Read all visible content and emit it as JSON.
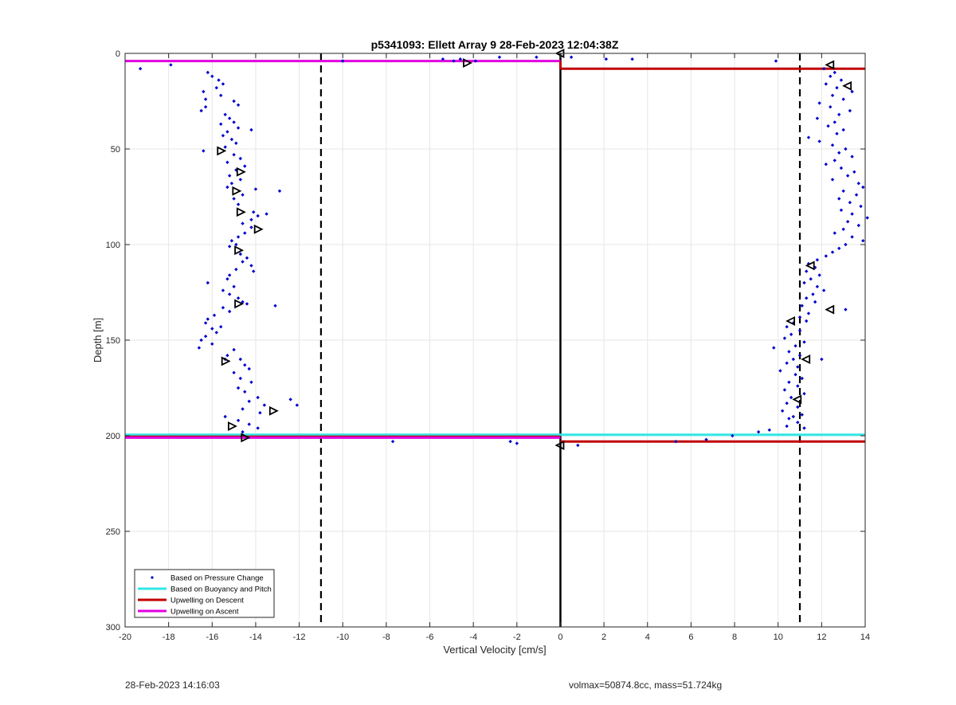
{
  "chart_data": {
    "type": "scatter",
    "title": "p5341093: Ellett Array 9 28-Feb-2023 12:04:38Z",
    "xlabel": "Vertical Velocity [cm/s]",
    "ylabel": "Depth [m]",
    "xlim": [
      -20,
      14
    ],
    "ylim": [
      0,
      300
    ],
    "y_reversed": true,
    "grid": true,
    "legend_position": "bottom-left",
    "x_ticks": [
      "-20",
      "-18",
      "-16",
      "-14",
      "-12",
      "-10",
      "-8",
      "-6",
      "-4",
      "-2",
      "0",
      "2",
      "4",
      "6",
      "8",
      "10",
      "12",
      "14"
    ],
    "y_ticks": [
      "0",
      "50",
      "100",
      "150",
      "200",
      "250",
      "300"
    ],
    "legend": [
      {
        "label": "Based on Pressure Change",
        "style": "dots",
        "color": "#0000cc"
      },
      {
        "label": "Based on Buoyancy and Pitch",
        "style": "line",
        "color": "#33e6e6"
      },
      {
        "label": "Upwelling on Descent",
        "style": "line",
        "color": "#c00000"
      },
      {
        "label": "Upwelling on Ascent",
        "style": "line",
        "color": "#e000e0"
      }
    ],
    "vertical_lines": [
      {
        "x": -11,
        "style": "dashed",
        "color": "#000000"
      },
      {
        "x": 11,
        "style": "dashed",
        "color": "#000000"
      }
    ],
    "series": [
      {
        "name": "Based on Pressure Change",
        "color": "#0000cc",
        "points": [
          [
            -19.3,
            8
          ],
          [
            -17.9,
            6
          ],
          [
            -16.2,
            10
          ],
          [
            -16.0,
            12
          ],
          [
            -15.7,
            14
          ],
          [
            -15.5,
            16
          ],
          [
            -15.8,
            18
          ],
          [
            -16.4,
            20
          ],
          [
            -15.6,
            22
          ],
          [
            -16.3,
            24
          ],
          [
            -15.0,
            25
          ],
          [
            -14.8,
            27
          ],
          [
            -16.3,
            28
          ],
          [
            -16.5,
            30
          ],
          [
            -15.4,
            32
          ],
          [
            -15.2,
            34
          ],
          [
            -15.0,
            36
          ],
          [
            -15.6,
            37
          ],
          [
            -14.8,
            39
          ],
          [
            -15.3,
            41
          ],
          [
            -14.2,
            40
          ],
          [
            -15.5,
            43
          ],
          [
            -15.1,
            45
          ],
          [
            -14.9,
            47
          ],
          [
            -15.4,
            49
          ],
          [
            -16.4,
            51
          ],
          [
            -15.0,
            53
          ],
          [
            -14.7,
            55
          ],
          [
            -15.3,
            57
          ],
          [
            -14.5,
            59
          ],
          [
            -14.9,
            61
          ],
          [
            -15.2,
            64
          ],
          [
            -14.7,
            66
          ],
          [
            -15.1,
            68
          ],
          [
            -15.3,
            70
          ],
          [
            -14.0,
            71
          ],
          [
            -12.9,
            72
          ],
          [
            -14.6,
            74
          ],
          [
            -15.0,
            76
          ],
          [
            -14.8,
            79
          ],
          [
            -14.1,
            83
          ],
          [
            -13.9,
            85
          ],
          [
            -13.5,
            84
          ],
          [
            -14.2,
            87
          ],
          [
            -14.6,
            89
          ],
          [
            -14.2,
            91
          ],
          [
            -14.5,
            94
          ],
          [
            -14.8,
            96
          ],
          [
            -15.1,
            98
          ],
          [
            -14.9,
            100
          ],
          [
            -15.2,
            101
          ],
          [
            -14.7,
            105
          ],
          [
            -14.4,
            107
          ],
          [
            -14.6,
            109
          ],
          [
            -14.2,
            111
          ],
          [
            -14.9,
            113
          ],
          [
            -14.1,
            114
          ],
          [
            -15.2,
            116
          ],
          [
            -15.3,
            118
          ],
          [
            -16.2,
            120
          ],
          [
            -15.0,
            122
          ],
          [
            -15.5,
            124
          ],
          [
            -15.2,
            126
          ],
          [
            -14.8,
            128
          ],
          [
            -14.6,
            130
          ],
          [
            -14.4,
            131
          ],
          [
            -13.1,
            132
          ],
          [
            -15.5,
            133
          ],
          [
            -15.2,
            135
          ],
          [
            -15.9,
            137
          ],
          [
            -16.2,
            139
          ],
          [
            -16.3,
            141
          ],
          [
            -15.6,
            143
          ],
          [
            -16.0,
            144
          ],
          [
            -15.8,
            146
          ],
          [
            -16.3,
            148
          ],
          [
            -16.5,
            150
          ],
          [
            -16.0,
            152
          ],
          [
            -16.6,
            154
          ],
          [
            -15.0,
            155
          ],
          [
            -15.3,
            158
          ],
          [
            -15.4,
            160
          ],
          [
            -14.7,
            160
          ],
          [
            -14.5,
            163
          ],
          [
            -14.3,
            165
          ],
          [
            -15.0,
            167
          ],
          [
            -14.7,
            170
          ],
          [
            -14.2,
            172
          ],
          [
            -14.8,
            175
          ],
          [
            -14.5,
            177
          ],
          [
            -13.9,
            180
          ],
          [
            -14.3,
            182
          ],
          [
            -12.4,
            181
          ],
          [
            -12.1,
            184
          ],
          [
            -13.6,
            184
          ],
          [
            -14.6,
            186
          ],
          [
            -13.8,
            188
          ],
          [
            -15.4,
            190
          ],
          [
            -14.8,
            192
          ],
          [
            -14.3,
            194
          ],
          [
            -13.9,
            196
          ],
          [
            -14.6,
            198
          ],
          [
            -10.0,
            4
          ],
          [
            -5.4,
            3
          ],
          [
            -4.9,
            4
          ],
          [
            -4.6,
            3
          ],
          [
            -3.9,
            4
          ],
          [
            -2.8,
            2
          ],
          [
            -1.1,
            2
          ],
          [
            0.5,
            2
          ],
          [
            2.1,
            3
          ],
          [
            3.3,
            3
          ],
          [
            9.9,
            4
          ],
          [
            -7.7,
            203
          ],
          [
            -2.3,
            203
          ],
          [
            -2.0,
            204
          ],
          [
            0.8,
            205
          ],
          [
            5.3,
            203
          ],
          [
            6.7,
            202
          ],
          [
            7.9,
            200
          ],
          [
            9.1,
            198
          ],
          [
            12.1,
            8
          ],
          [
            12.6,
            10
          ],
          [
            12.4,
            12
          ],
          [
            12.9,
            14
          ],
          [
            12.2,
            16
          ],
          [
            12.7,
            18
          ],
          [
            13.4,
            20
          ],
          [
            12.5,
            22
          ],
          [
            13.0,
            24
          ],
          [
            11.9,
            26
          ],
          [
            12.4,
            28
          ],
          [
            13.3,
            30
          ],
          [
            12.8,
            32
          ],
          [
            11.8,
            34
          ],
          [
            12.6,
            36
          ],
          [
            12.3,
            38
          ],
          [
            13.0,
            40
          ],
          [
            12.7,
            42
          ],
          [
            11.4,
            44
          ],
          [
            11.9,
            46
          ],
          [
            12.5,
            48
          ],
          [
            13.1,
            50
          ],
          [
            12.8,
            52
          ],
          [
            13.4,
            54
          ],
          [
            12.6,
            56
          ],
          [
            12.2,
            58
          ],
          [
            12.9,
            60
          ],
          [
            13.5,
            62
          ],
          [
            13.2,
            64
          ],
          [
            12.5,
            66
          ],
          [
            13.7,
            68
          ],
          [
            13.9,
            70
          ],
          [
            13.0,
            72
          ],
          [
            13.6,
            74
          ],
          [
            12.8,
            76
          ],
          [
            13.3,
            78
          ],
          [
            13.8,
            80
          ],
          [
            12.9,
            82
          ],
          [
            13.4,
            84
          ],
          [
            14.1,
            86
          ],
          [
            13.2,
            88
          ],
          [
            13.7,
            90
          ],
          [
            13.0,
            92
          ],
          [
            12.6,
            94
          ],
          [
            13.4,
            96
          ],
          [
            13.9,
            98
          ],
          [
            13.1,
            100
          ],
          [
            12.8,
            102
          ],
          [
            12.5,
            104
          ],
          [
            12.2,
            106
          ],
          [
            11.8,
            108
          ],
          [
            11.4,
            110
          ],
          [
            11.7,
            112
          ],
          [
            11.3,
            114
          ],
          [
            11.9,
            116
          ],
          [
            11.5,
            118
          ],
          [
            11.2,
            120
          ],
          [
            11.8,
            122
          ],
          [
            12.1,
            124
          ],
          [
            11.6,
            126
          ],
          [
            11.3,
            128
          ],
          [
            11.7,
            130
          ],
          [
            11.1,
            132
          ],
          [
            13.1,
            134
          ],
          [
            11.4,
            136
          ],
          [
            11.0,
            138
          ],
          [
            11.3,
            140
          ],
          [
            10.7,
            141
          ],
          [
            10.4,
            143
          ],
          [
            11.0,
            145
          ],
          [
            10.6,
            147
          ],
          [
            10.3,
            149
          ],
          [
            11.2,
            151
          ],
          [
            10.8,
            153
          ],
          [
            9.8,
            154
          ],
          [
            10.5,
            156
          ],
          [
            11.0,
            158
          ],
          [
            10.7,
            160
          ],
          [
            12.0,
            160
          ],
          [
            10.4,
            162
          ],
          [
            10.9,
            164
          ],
          [
            10.1,
            166
          ],
          [
            10.8,
            168
          ],
          [
            11.1,
            170
          ],
          [
            10.5,
            172
          ],
          [
            10.9,
            174
          ],
          [
            10.3,
            176
          ],
          [
            11.2,
            178
          ],
          [
            10.6,
            180
          ],
          [
            10.4,
            183
          ],
          [
            10.9,
            185
          ],
          [
            10.2,
            187
          ],
          [
            11.1,
            189
          ],
          [
            10.5,
            191
          ],
          [
            10.9,
            193
          ],
          [
            10.4,
            195
          ],
          [
            9.6,
            197
          ],
          [
            11.2,
            196
          ],
          [
            10.7,
            190
          ]
        ]
      },
      {
        "name": "Glide markers",
        "color": "#000000",
        "points": [
          [
            0.0,
            0
          ],
          [
            -4.3,
            5
          ],
          [
            12.4,
            6
          ],
          [
            13.2,
            17
          ],
          [
            -15.6,
            51
          ],
          [
            -14.7,
            62
          ],
          [
            -14.9,
            72
          ],
          [
            -14.7,
            83
          ],
          [
            -13.9,
            92
          ],
          [
            -14.8,
            103
          ],
          [
            11.5,
            111
          ],
          [
            -14.8,
            131
          ],
          [
            12.4,
            134
          ],
          [
            10.6,
            140
          ],
          [
            -15.4,
            161
          ],
          [
            11.3,
            160
          ],
          [
            10.9,
            181
          ],
          [
            -13.2,
            187
          ],
          [
            -15.1,
            195
          ],
          [
            -14.5,
            201
          ],
          [
            0.0,
            205
          ]
        ]
      },
      {
        "name": "Based on Buoyancy and Pitch",
        "color": "#33e6e6",
        "segments": [
          {
            "x": [
              -20,
              0
            ],
            "y": 199.5
          },
          {
            "x": [
              0,
              14
            ],
            "y": 199.5
          }
        ]
      },
      {
        "name": "Upwelling on Descent",
        "color": "#c00000",
        "segments": [
          {
            "x": [
              0,
              14
            ],
            "y": 8
          },
          {
            "x": [
              0,
              14
            ],
            "y": 203
          },
          {
            "x": [
              -20,
              0
            ],
            "y": 200.5
          }
        ]
      },
      {
        "name": "Upwelling on Ascent",
        "color": "#e000e0",
        "segments": [
          {
            "x": [
              -20,
              0
            ],
            "y": 4
          },
          {
            "x": [
              -20,
              0
            ],
            "y": 201
          }
        ]
      }
    ]
  },
  "footer": {
    "timestamp": "28-Feb-2023 14:16:03",
    "info": "volmax=50874.8cc, mass=51.724kg"
  }
}
